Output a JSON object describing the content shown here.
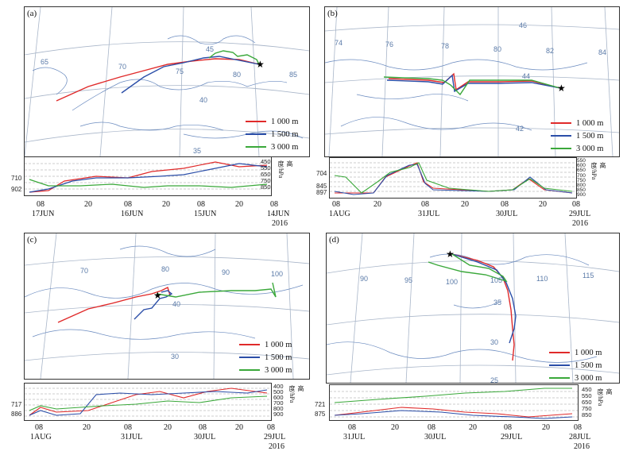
{
  "legend": {
    "series": [
      {
        "label": "1 000 m",
        "color": "#e02a2a"
      },
      {
        "label": "1 500 m",
        "color": "#2b4ea8"
      },
      {
        "label": "3 000 m",
        "color": "#3aa83a"
      }
    ]
  },
  "axis_name": "高度/hPa",
  "panels": [
    {
      "label": "(a)",
      "grid_labels": [
        "65",
        "70",
        "75",
        "80",
        "85",
        "45",
        "40",
        "35"
      ],
      "pressure_levels": [
        "450",
        "550",
        "650",
        "750",
        "850"
      ],
      "start_pressures": [
        "710",
        "902"
      ],
      "time_ticks": [
        "08",
        "20",
        "08",
        "20",
        "08",
        "20",
        "08"
      ],
      "dates": [
        "17JUN",
        "16JUN",
        "15JUN",
        "14JUN"
      ],
      "year": "2016"
    },
    {
      "label": "(b)",
      "grid_labels": [
        "74",
        "76",
        "78",
        "80",
        "82",
        "84",
        "46",
        "44",
        "42"
      ],
      "pressure_levels": [
        "550",
        "600",
        "650",
        "700",
        "750",
        "800",
        "850",
        "900"
      ],
      "start_pressures": [
        "704",
        "845",
        "897"
      ],
      "time_ticks": [
        "08",
        "20",
        "08",
        "20",
        "08",
        "20",
        "08"
      ],
      "dates": [
        "1AUG",
        "31JUL",
        "30JUL",
        "29JUL"
      ],
      "year": "2016"
    },
    {
      "label": "(c)",
      "grid_labels": [
        "70",
        "80",
        "90",
        "100",
        "40",
        "30"
      ],
      "pressure_levels": [
        "400",
        "500",
        "600",
        "700",
        "800",
        "900"
      ],
      "start_pressures": [
        "717",
        "886"
      ],
      "time_ticks": [
        "08",
        "20",
        "08",
        "20",
        "08",
        "20",
        "08"
      ],
      "dates": [
        "1AUG",
        "31JUL",
        "30JUL",
        "29JUL"
      ],
      "year": "2016"
    },
    {
      "label": "(d)",
      "grid_labels": [
        "90",
        "95",
        "100",
        "105",
        "110",
        "115",
        "35",
        "30",
        "25"
      ],
      "pressure_levels": [
        "450",
        "550",
        "650",
        "750",
        "850"
      ],
      "start_pressures": [
        "721",
        "875"
      ],
      "time_ticks": [
        "08",
        "20",
        "08",
        "20",
        "08",
        "20",
        "08"
      ],
      "dates": [
        "31JUL",
        "30JUL",
        "29JUL",
        "28JUL"
      ],
      "year": "2016"
    }
  ]
}
